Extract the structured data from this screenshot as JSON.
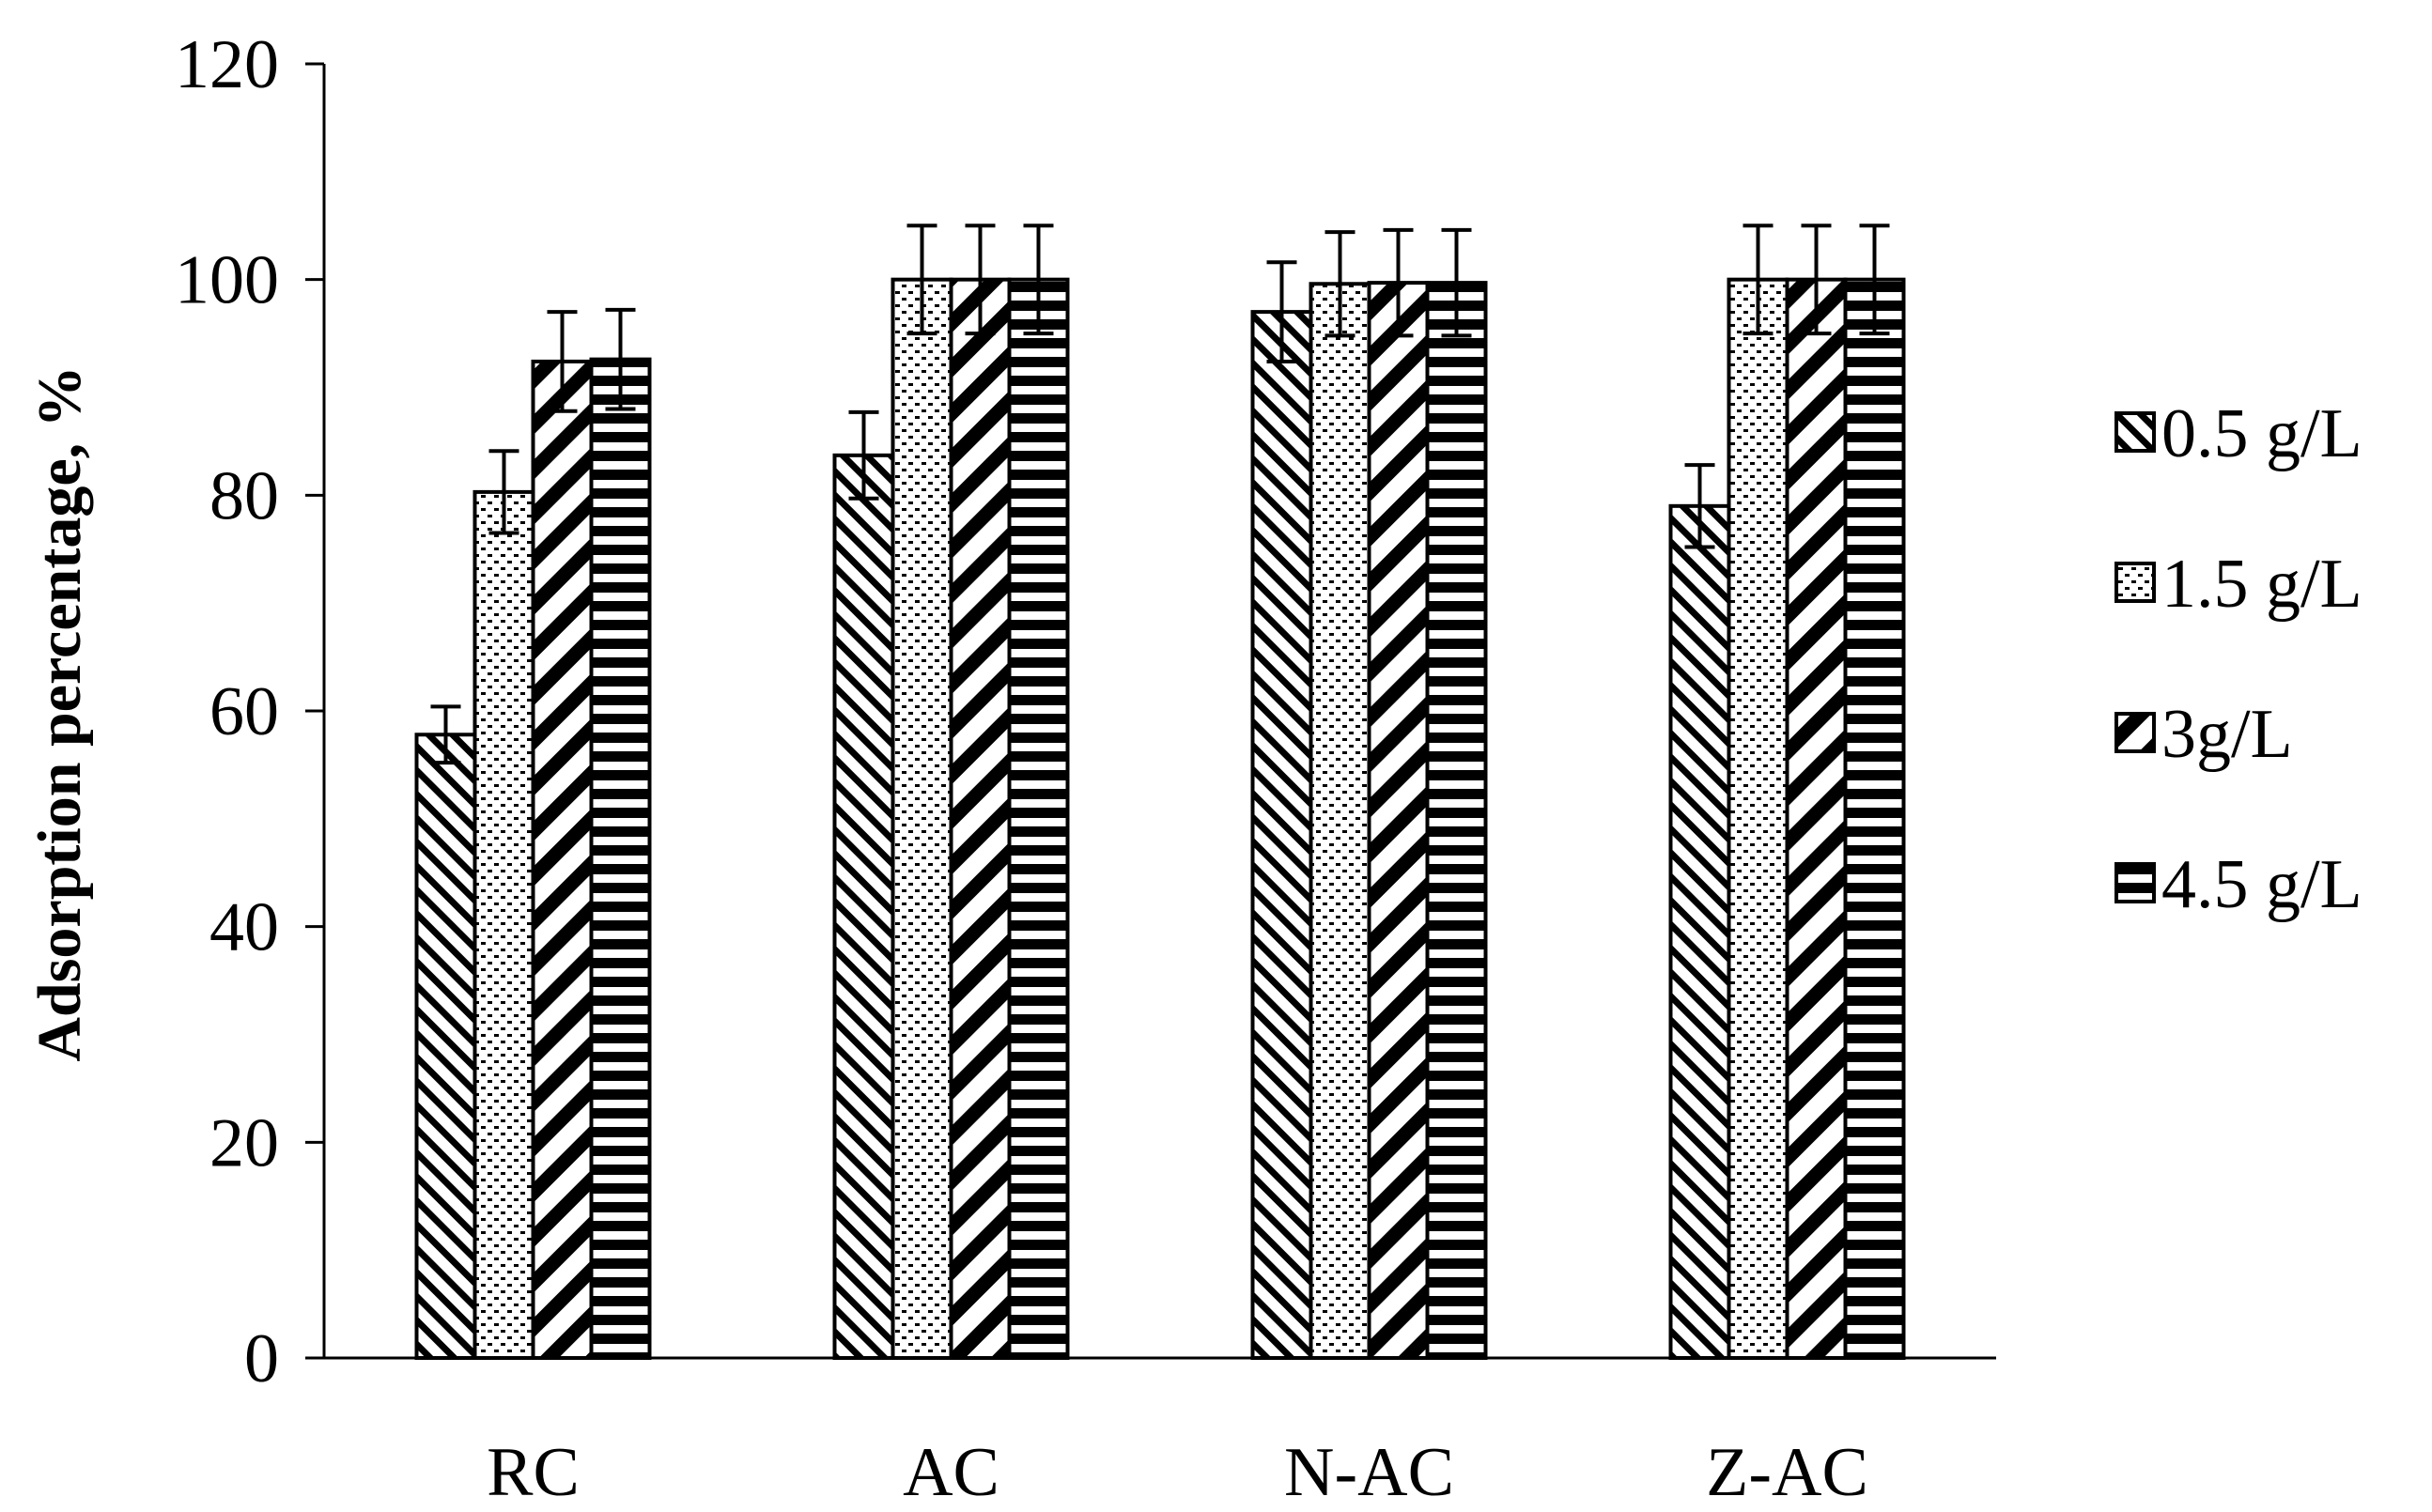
{
  "chart_data": {
    "type": "bar",
    "categories": [
      "RC",
      "AC",
      "N-AC",
      "Z-AC"
    ],
    "series": [
      {
        "name": "0.5 g/L",
        "values": [
          57.8,
          83.7,
          97.0,
          79.0
        ],
        "errors": [
          2.6,
          4.0,
          4.6,
          3.8
        ],
        "pattern": "diag-forward"
      },
      {
        "name": "1.5 g/L",
        "values": [
          80.3,
          100.0,
          99.6,
          100.0
        ],
        "errors": [
          3.8,
          5.0,
          4.8,
          5.0
        ],
        "pattern": "dots"
      },
      {
        "name": "3g/L",
        "values": [
          92.4,
          100.0,
          99.7,
          100.0
        ],
        "errors": [
          4.6,
          5.0,
          4.9,
          5.0
        ],
        "pattern": "diag-back"
      },
      {
        "name": "4.5 g/L",
        "values": [
          92.6,
          100.0,
          99.7,
          100.0
        ],
        "errors": [
          4.6,
          5.0,
          4.9,
          5.0
        ],
        "pattern": "horizontal"
      }
    ],
    "title": "",
    "xlabel": "",
    "ylabel": "Adsorption percentage, %",
    "ylim": [
      0,
      120
    ],
    "yticks": [
      0,
      20,
      40,
      60,
      80,
      100,
      120
    ],
    "grid": false,
    "legend": "right",
    "colors": {
      "ink": "#000000",
      "background": "#ffffff"
    }
  }
}
